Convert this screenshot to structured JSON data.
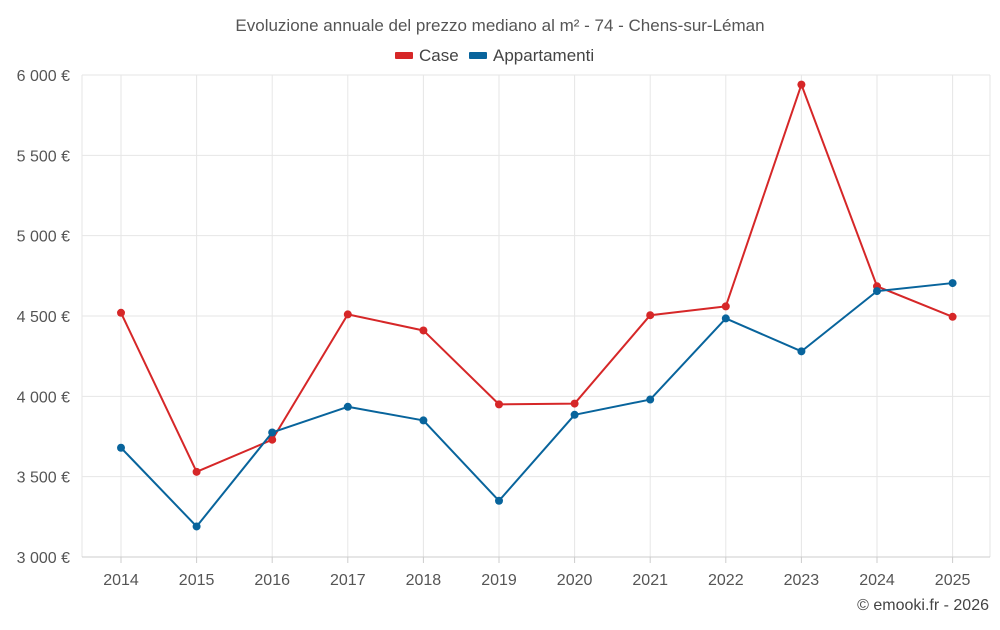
{
  "chart_data": {
    "type": "line",
    "title": "Evoluzione annuale del prezzo mediano al m² - 74 - Chens-sur-Léman",
    "categories": [
      "2014",
      "2015",
      "2016",
      "2017",
      "2018",
      "2019",
      "2020",
      "2021",
      "2022",
      "2023",
      "2024",
      "2025"
    ],
    "series": [
      {
        "name": "Case",
        "color": "#d62728",
        "values": [
          4520,
          3530,
          3730,
          4510,
          4410,
          3950,
          3955,
          4505,
          4560,
          5940,
          4685,
          4495
        ]
      },
      {
        "name": "Appartamenti",
        "color": "#08649c",
        "values": [
          3680,
          3190,
          3775,
          3935,
          3850,
          3350,
          3885,
          3980,
          4485,
          4280,
          4655,
          4705
        ]
      }
    ],
    "ylim": [
      3000,
      6000
    ],
    "yticks": [
      3000,
      3500,
      4000,
      4500,
      5000,
      5500,
      6000
    ],
    "ytick_labels": [
      "3 000 €",
      "3 500 €",
      "4 000 €",
      "4 500 €",
      "5 000 €",
      "5 500 €",
      "6 000 €"
    ],
    "legend_position": "top-center",
    "grid": true
  },
  "credit": "© emooki.fr - 2026"
}
